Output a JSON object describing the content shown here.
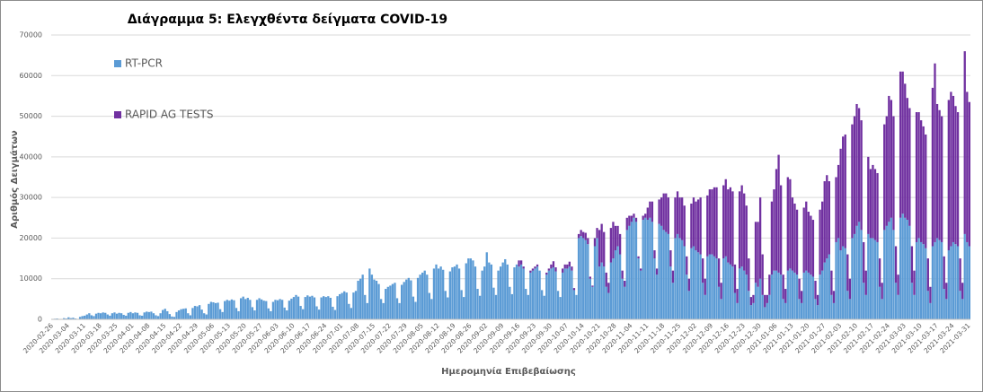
{
  "chart_data": {
    "type": "stacked_bar",
    "title": "Διάγραμμα 5: Ελεγχθέντα δείγματα COVID-19",
    "x_label": "Ημερομηνία Επιβεβαίωσης",
    "y_label": "Αριθμός Δειγμάτων",
    "ylim": [
      0,
      70000
    ],
    "yticks": [
      0,
      10000,
      20000,
      30000,
      40000,
      50000,
      60000,
      70000
    ],
    "grid": true,
    "legend": "upper-left",
    "categories": [
      "2020-02-26",
      null,
      null,
      null,
      null,
      null,
      null,
      "2020-03-04",
      null,
      null,
      null,
      null,
      null,
      null,
      "2020-03-11",
      null,
      null,
      null,
      null,
      null,
      null,
      "2020-03-18",
      null,
      null,
      null,
      null,
      null,
      null,
      "2020-03-25",
      null,
      null,
      null,
      null,
      null,
      null,
      "2020-04-01",
      null,
      null,
      null,
      null,
      null,
      null,
      "2020-04-08",
      null,
      null,
      null,
      null,
      null,
      null,
      "2020-04-15",
      null,
      null,
      null,
      null,
      null,
      null,
      "2020-04-22",
      null,
      null,
      null,
      null,
      null,
      null,
      "2020-04-29",
      null,
      null,
      null,
      null,
      null,
      null,
      "2020-05-06",
      null,
      null,
      null,
      null,
      null,
      null,
      "2020-05-13",
      null,
      null,
      null,
      null,
      null,
      null,
      "2020-05-20",
      null,
      null,
      null,
      null,
      null,
      null,
      "2020-05-27",
      null,
      null,
      null,
      null,
      null,
      null,
      "2020-06-03",
      null,
      null,
      null,
      null,
      null,
      null,
      "2020-06-10",
      null,
      null,
      null,
      null,
      null,
      null,
      "2020-06-17",
      null,
      null,
      null,
      null,
      null,
      null,
      "2020-06-24",
      null,
      null,
      null,
      null,
      null,
      null,
      "2020-07-01",
      null,
      null,
      null,
      null,
      null,
      null,
      "2020-07-08",
      null,
      null,
      null,
      null,
      null,
      null,
      "2020-07-15",
      null,
      null,
      null,
      null,
      null,
      null,
      "2020-07-22",
      null,
      null,
      null,
      null,
      null,
      null,
      "2020-07-29",
      null,
      null,
      null,
      null,
      null,
      null,
      "2020-08-05",
      null,
      null,
      null,
      null,
      null,
      null,
      "2020-08-12",
      null,
      null,
      null,
      null,
      null,
      null,
      "2020-08-19",
      null,
      null,
      null,
      null,
      null,
      null,
      "2020-08-26",
      null,
      null,
      null,
      null,
      null,
      null,
      "2020-09-02",
      null,
      null,
      null,
      null,
      null,
      null,
      "2020-09-09",
      null,
      null,
      null,
      null,
      null,
      null,
      "2020-09-16",
      null,
      null,
      null,
      null,
      null,
      null,
      "2020-09-23",
      null,
      null,
      null,
      null,
      null,
      null,
      "2020-09-30",
      null,
      null,
      null,
      null,
      null,
      null,
      "2020-10-07",
      null,
      null,
      null,
      null,
      null,
      null,
      "2020-10-14",
      null,
      null,
      null,
      null,
      null,
      null,
      "2020-10-21",
      null,
      null,
      null,
      null,
      null,
      null,
      "2020-10-28",
      null,
      null,
      null,
      null,
      null,
      null,
      "2020-11-04",
      null,
      null,
      null,
      null,
      null,
      null,
      "2020-11-11",
      null,
      null,
      null,
      null,
      null,
      null,
      "2020-11-18",
      null,
      null,
      null,
      null,
      null,
      null,
      "2020-11-25",
      null,
      null,
      null,
      null,
      null,
      null,
      "2020-12-02",
      null,
      null,
      null,
      null,
      null,
      null,
      "2020-12-09",
      null,
      null,
      null,
      null,
      null,
      null,
      "2020-12-16",
      null,
      null,
      null,
      null,
      null,
      null,
      "2020-12-23",
      null,
      null,
      null,
      null,
      null,
      null,
      "2020-12-30",
      null,
      null,
      null,
      null,
      null,
      null,
      "2021-01-06",
      null,
      null,
      null,
      null,
      null,
      null,
      "2021-01-13",
      null,
      null,
      null,
      null,
      null,
      null,
      "2021-01-20",
      null,
      null,
      null,
      null,
      null,
      null,
      "2021-01-27",
      null,
      null,
      null,
      null,
      null,
      null,
      "2021-02-03",
      null,
      null,
      null,
      null,
      null,
      null,
      "2021-02-10",
      null,
      null,
      null,
      null,
      null,
      null,
      "2021-02-17",
      null,
      null,
      null,
      null,
      null,
      null,
      "2021-02-24",
      null,
      null,
      null,
      null,
      null,
      null,
      "2021-03-03",
      null,
      null,
      null,
      null,
      null,
      null,
      "2021-03-10",
      null,
      null,
      null,
      null,
      null,
      null,
      "2021-03-17",
      null,
      null,
      null,
      null,
      null,
      null,
      "2021-03-24",
      null,
      null,
      null,
      null,
      null,
      null,
      "2021-03-31"
    ],
    "series": [
      {
        "name": "RT-PCR",
        "color": "#5b9bd5",
        "values": [
          100,
          150,
          200,
          100,
          50,
          300,
          200,
          500,
          300,
          400,
          200,
          100,
          600,
          800,
          900,
          1200,
          1500,
          1000,
          800,
          1400,
          1600,
          1500,
          1700,
          1600,
          1200,
          900,
          1500,
          1700,
          1400,
          1600,
          1500,
          1100,
          900,
          1600,
          1800,
          1500,
          1700,
          1600,
          1000,
          900,
          1700,
          1900,
          1800,
          1900,
          1500,
          1000,
          800,
          1500,
          2300,
          2600,
          2000,
          1300,
          700,
          600,
          1800,
          2200,
          2500,
          2600,
          2700,
          1500,
          1000,
          2800,
          3300,
          3200,
          3500,
          2400,
          1500,
          1200,
          3800,
          4300,
          4200,
          4000,
          4100,
          2500,
          1800,
          4500,
          4800,
          4600,
          4900,
          4700,
          2800,
          2000,
          5200,
          5600,
          5000,
          5300,
          4800,
          3000,
          2200,
          4800,
          5200,
          4900,
          4600,
          4500,
          2700,
          2000,
          4300,
          4800,
          4700,
          5000,
          4800,
          2900,
          2200,
          4600,
          5100,
          5500,
          6000,
          5600,
          3300,
          2500,
          5500,
          5900,
          5600,
          5800,
          5400,
          3200,
          2400,
          5400,
          5700,
          5500,
          5700,
          5300,
          3100,
          2300,
          5700,
          6200,
          6500,
          6900,
          6600,
          3800,
          2800,
          6600,
          7000,
          9500,
          10000,
          11000,
          6000,
          4000,
          12500,
          11000,
          9800,
          9500,
          8700,
          5000,
          4000,
          7500,
          8000,
          8300,
          8700,
          9000,
          5200,
          4000,
          8500,
          9200,
          9800,
          10200,
          9600,
          5600,
          4300,
          10200,
          11000,
          11500,
          12000,
          11000,
          6500,
          5000,
          12500,
          13500,
          12500,
          13000,
          12200,
          7000,
          5400,
          11800,
          12800,
          13000,
          13500,
          12500,
          7200,
          5500,
          13800,
          15000,
          15000,
          14500,
          13000,
          7500,
          5800,
          12000,
          13000,
          16500,
          14000,
          13500,
          7800,
          6000,
          12000,
          13000,
          14000,
          14800,
          13500,
          8000,
          6200,
          12800,
          13500,
          13000,
          13500,
          12500,
          7500,
          6000,
          11500,
          12000,
          12500,
          13000,
          12000,
          7200,
          5800,
          11000,
          12000,
          12500,
          12800,
          11800,
          7000,
          5500,
          11500,
          12500,
          12500,
          13000,
          12000,
          7200,
          6000,
          20000,
          20500,
          20000,
          19500,
          18500,
          10000,
          8000,
          18000,
          20000,
          13000,
          14000,
          13000,
          8000,
          6500,
          14000,
          15000,
          17000,
          18000,
          16000,
          10000,
          8000,
          22000,
          23000,
          24000,
          25000,
          24000,
          15000,
          12000,
          24500,
          25000,
          24500,
          25000,
          24000,
          15000,
          11000,
          23500,
          23000,
          22000,
          21500,
          21000,
          13000,
          9000,
          20000,
          21000,
          20000,
          19500,
          18000,
          11000,
          7000,
          17500,
          18000,
          17000,
          16500,
          16000,
          9000,
          6000,
          15500,
          16000,
          16000,
          15500,
          15000,
          8000,
          5000,
          15000,
          15500,
          14000,
          13500,
          13000,
          6500,
          4000,
          12500,
          13000,
          12000,
          11000,
          7000,
          3500,
          4000,
          9000,
          8000,
          10000,
          6000,
          3000,
          4000,
          6000,
          11000,
          12000,
          12000,
          11500,
          11000,
          5000,
          4000,
          12000,
          12500,
          12000,
          11500,
          11000,
          5000,
          4000,
          11500,
          12000,
          11500,
          11000,
          10500,
          5000,
          3500,
          11000,
          12000,
          14000,
          15000,
          16000,
          6000,
          4000,
          19000,
          20000,
          17000,
          18000,
          17500,
          7000,
          5000,
          20000,
          21000,
          23000,
          24000,
          22000,
          9000,
          6000,
          21000,
          20000,
          20000,
          19500,
          19000,
          8000,
          5000,
          22000,
          23000,
          24000,
          25000,
          22000,
          9000,
          6000,
          25000,
          26000,
          25000,
          24500,
          23000,
          9000,
          6000,
          19000,
          20000,
          19000,
          18500,
          17500,
          7000,
          4000,
          18000,
          19000,
          20000,
          19500,
          19000,
          7500,
          5000,
          17000,
          18000,
          19000,
          18500,
          18000,
          7000,
          5000,
          21000,
          19000,
          18000
        ]
      },
      {
        "name": "RAPID AG TESTS",
        "color": "#7030a0",
        "values": [
          0,
          0,
          0,
          0,
          0,
          0,
          0,
          0,
          0,
          0,
          0,
          0,
          0,
          0,
          0,
          0,
          0,
          0,
          0,
          0,
          0,
          0,
          0,
          0,
          0,
          0,
          0,
          0,
          0,
          0,
          0,
          0,
          0,
          0,
          0,
          0,
          0,
          0,
          0,
          0,
          0,
          0,
          0,
          0,
          0,
          0,
          0,
          0,
          0,
          0,
          0,
          0,
          0,
          0,
          0,
          0,
          0,
          0,
          0,
          0,
          0,
          0,
          0,
          0,
          0,
          0,
          0,
          0,
          0,
          0,
          0,
          0,
          0,
          0,
          0,
          0,
          0,
          0,
          0,
          0,
          0,
          0,
          0,
          0,
          0,
          0,
          0,
          0,
          0,
          0,
          0,
          0,
          0,
          0,
          0,
          0,
          0,
          0,
          0,
          0,
          0,
          0,
          0,
          0,
          0,
          0,
          0,
          0,
          0,
          0,
          0,
          0,
          0,
          0,
          0,
          0,
          0,
          0,
          0,
          0,
          0,
          0,
          0,
          0,
          0,
          0,
          0,
          0,
          0,
          0,
          0,
          0,
          0,
          0,
          0,
          0,
          0,
          0,
          0,
          0,
          0,
          0,
          0,
          0,
          0,
          0,
          0,
          0,
          0,
          0,
          0,
          0,
          0,
          0,
          0,
          0,
          0,
          0,
          0,
          0,
          0,
          0,
          0,
          0,
          0,
          0,
          0,
          0,
          0,
          0,
          0,
          0,
          0,
          0,
          0,
          0,
          0,
          0,
          0,
          0,
          0,
          0,
          0,
          0,
          0,
          0,
          0,
          0,
          0,
          0,
          0,
          0,
          0,
          0,
          0,
          0,
          0,
          0,
          0,
          0,
          0,
          0,
          0,
          1500,
          1000,
          500,
          0,
          0,
          500,
          500,
          500,
          500,
          0,
          0,
          0,
          500,
          500,
          1000,
          1500,
          1000,
          0,
          0,
          1000,
          1000,
          1000,
          1200,
          1000,
          500,
          0,
          1000,
          1500,
          1500,
          1800,
          1500,
          500,
          300,
          2000,
          2500,
          9000,
          9500,
          8500,
          3500,
          2500,
          8500,
          9000,
          6000,
          5000,
          5000,
          2000,
          1500,
          3000,
          2500,
          1500,
          1000,
          1000,
          500,
          500,
          1000,
          1000,
          3000,
          4000,
          5000,
          2000,
          1500,
          6000,
          7000,
          9000,
          9500,
          9000,
          4000,
          3000,
          10000,
          10500,
          10000,
          10500,
          10000,
          4500,
          3000,
          11000,
          12000,
          12000,
          13000,
          14000,
          6000,
          4000,
          15000,
          16000,
          16000,
          17000,
          17500,
          7000,
          4000,
          18000,
          19000,
          18000,
          19000,
          18500,
          7000,
          3500,
          19000,
          20000,
          19000,
          17000,
          8000,
          2000,
          2000,
          15000,
          16000,
          20000,
          10000,
          3000,
          2000,
          5000,
          18000,
          20000,
          25000,
          29000,
          22000,
          6000,
          3500,
          23000,
          22000,
          18000,
          17000,
          16000,
          5000,
          3000,
          16000,
          17000,
          15000,
          14500,
          14000,
          4500,
          2500,
          16000,
          17000,
          20000,
          20500,
          18000,
          6000,
          3000,
          16000,
          18000,
          25000,
          27000,
          28000,
          9000,
          5000,
          28000,
          29000,
          30000,
          28000,
          27000,
          10000,
          6000,
          19000,
          17000,
          18000,
          17500,
          17000,
          7000,
          4000,
          26000,
          27000,
          31000,
          29000,
          28000,
          9000,
          5000,
          36000,
          35000,
          33000,
          30000,
          29000,
          9000,
          6000,
          32000,
          31000,
          30000,
          29000,
          28000,
          8000,
          4000,
          39000,
          44000,
          33000,
          32000,
          31000,
          8000,
          4000,
          37000,
          38000,
          36000,
          34000,
          33000,
          8000,
          4000,
          45000,
          37000,
          35500
        ]
      }
    ]
  }
}
